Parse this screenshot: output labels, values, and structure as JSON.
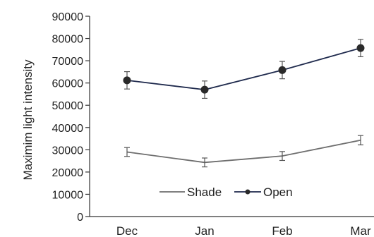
{
  "chart_data": {
    "type": "line",
    "title": "",
    "xlabel": "",
    "ylabel": "Maximim light intensity",
    "categories": [
      "Dec",
      "Jan",
      "Feb",
      "Mar"
    ],
    "ylim": [
      0,
      90000
    ],
    "yticks": [
      0,
      10000,
      20000,
      30000,
      40000,
      50000,
      60000,
      70000,
      80000,
      90000
    ],
    "ytick_labels": [
      "0",
      "10000",
      "20000",
      "30000",
      "40000",
      "50000",
      "60000",
      "70000",
      "80000",
      "90000"
    ],
    "grid": false,
    "legend": {
      "placement": "bottom-center",
      "entries": [
        "Shade",
        "Open"
      ]
    },
    "series": [
      {
        "name": "Shade",
        "color": "#6e6e6e",
        "marker": "none",
        "values": [
          29000,
          24300,
          27200,
          34300
        ],
        "error": [
          2000,
          2000,
          2000,
          2100
        ]
      },
      {
        "name": "Open",
        "color": "#1f2a4d",
        "marker": "circle",
        "values": [
          61200,
          57000,
          65800,
          75700
        ],
        "error": [
          3900,
          3900,
          3900,
          3900
        ]
      }
    ]
  }
}
